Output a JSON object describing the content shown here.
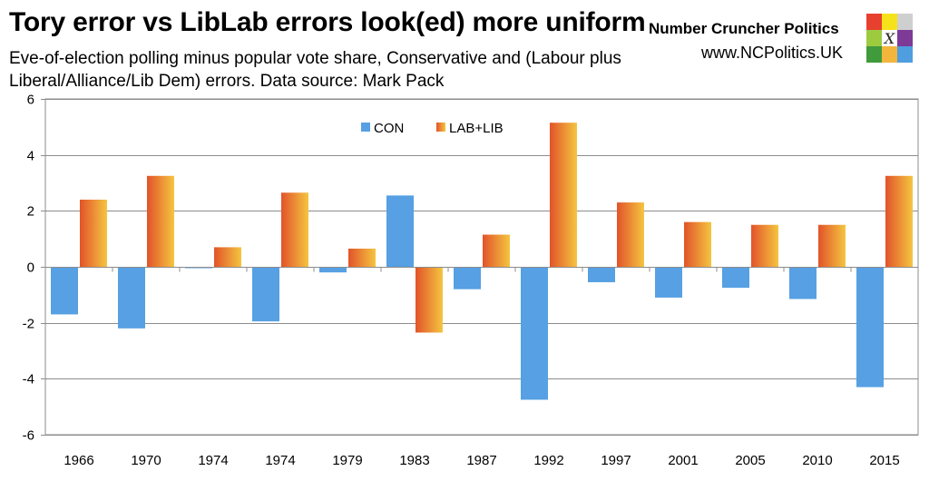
{
  "header": {
    "title": "Tory error vs LibLab errors look(ed) more uniform",
    "subtitle": "Eve-of-election polling minus popular vote share, Conservative and (Labour plus Liberal/Alliance/Lib Dem) errors. Data source: Mark Pack"
  },
  "brand": {
    "name": "Number Cruncher Politics",
    "url": "www.NCPolitics.UK",
    "logo_mark": "X",
    "logo_colors": [
      "#e8402f",
      "#f6e21a",
      "#cfcfcf",
      "#9ccb3f",
      "#ffffff",
      "#7d3a96",
      "#3f9b3c",
      "#f4b53c",
      "#4e9ee0"
    ]
  },
  "chart_data": {
    "type": "bar",
    "title": "Tory error vs LibLab errors look(ed) more uniform",
    "xlabel": "",
    "ylabel": "",
    "ylim": [
      -6,
      6
    ],
    "yticks": [
      -6,
      -4,
      -2,
      0,
      2,
      4,
      6
    ],
    "grid": true,
    "legend_position": "top-center",
    "categories": [
      "1966",
      "1970",
      "1974",
      "1974",
      "1979",
      "1983",
      "1987",
      "1992",
      "1997",
      "2001",
      "2005",
      "2010",
      "2015"
    ],
    "series": [
      {
        "name": "CON",
        "color": "#56a0e3",
        "values": [
          -1.7,
          -2.2,
          -0.05,
          -1.95,
          -0.2,
          2.55,
          -0.8,
          -4.75,
          -0.55,
          -1.1,
          -0.75,
          -1.15,
          -4.3
        ]
      },
      {
        "name": "LAB+LIB",
        "color": "#e2532a",
        "color2": "#f4c540",
        "values": [
          2.4,
          3.25,
          0.7,
          2.65,
          0.65,
          -2.35,
          1.15,
          5.15,
          2.3,
          1.6,
          1.5,
          1.5,
          3.25
        ]
      }
    ]
  }
}
